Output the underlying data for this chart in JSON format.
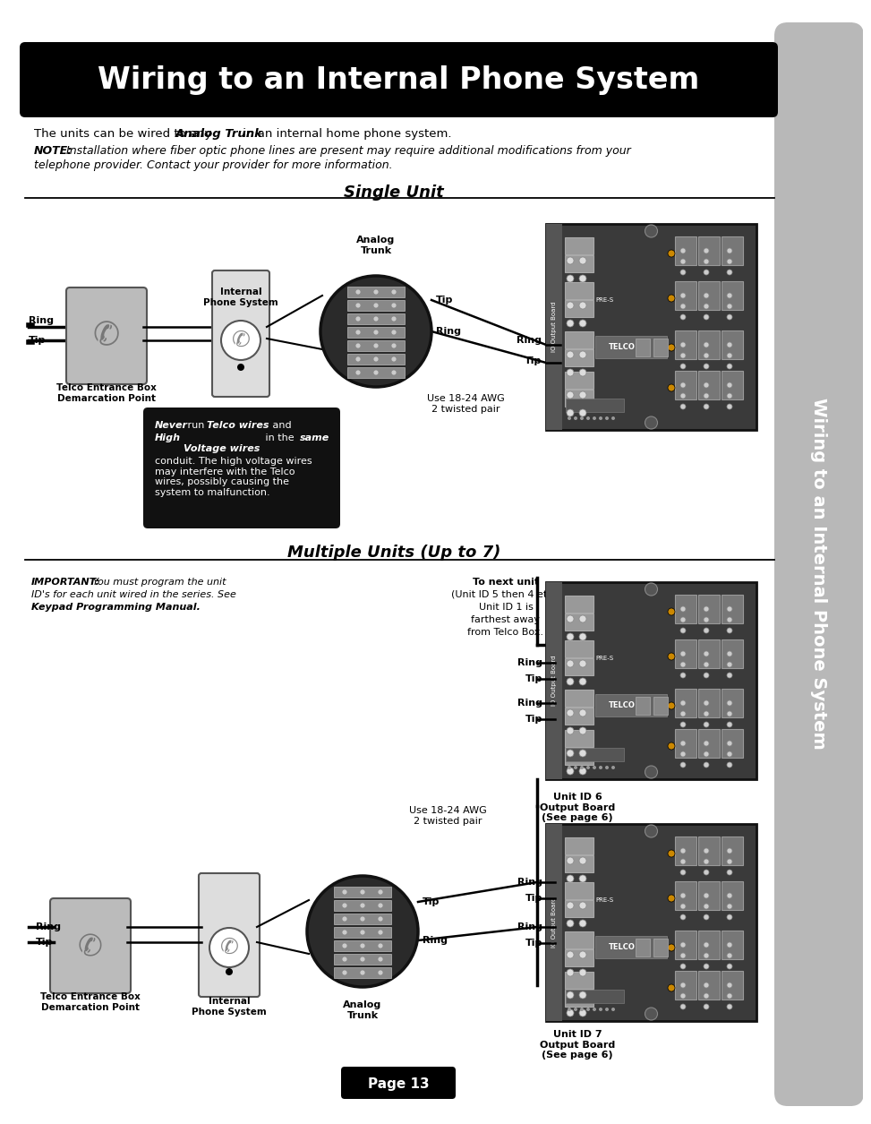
{
  "title": "Wiring to an Internal Phone System",
  "title_bg": "#000000",
  "title_fg": "#ffffff",
  "sidebar_text": "Wiring to an Internal Phone System",
  "sidebar_bg": "#b8b8b8",
  "page_bg": "#ffffff",
  "intro_text1": "The units can be wired to any ",
  "intro_bold": "Analog Trunk",
  "intro_text2": " in an internal home phone system.",
  "note_bold": "NOTE:",
  "note_italic": " Installation where fiber optic phone lines are present may require additional modifications from your",
  "note_italic2": "telephone provider. Contact your provider for more information.",
  "section1_title": "Single Unit",
  "section2_title": "Multiple Units (Up to 7)",
  "warning_never": "Never",
  "warning_telco": " run Telco wires",
  "warning_and": " and ",
  "warning_high": "High",
  "warning_voltage": "\nVoltage wires",
  "warning_same_pre": " in the ",
  "warning_same": "same",
  "warning_rest": "\nconduit. The high voltage wires\nmay interfere with the Telco\nwires, possibly causing the\nsystem to malfunction.",
  "important_bold": "IMPORTANT:",
  "important_rest": " You must program the unit\nID's for each unit wired in the series. See",
  "keypad_bold": "Keypad Programming Manual.",
  "to_next_unit": "To next unit",
  "unit_id_text": "(Unit ID 5 then 4 etc.)\nUnit ID 1 is\nfarthest away\nfrom Telco Box.",
  "use_awg": "Use 18-24 AWG\n2 twisted pair",
  "unit6_text": "Unit ID 6\nOutput Board\n(See page 6)",
  "unit7_text": "Unit ID 7\nOutput Board\n(See page 6)",
  "page_num": "Page 13",
  "telco_label1": "Telco Entrance Box",
  "telco_label2": "Demarcation Point",
  "internal_ps": "Internal\nPhone System",
  "analog_trunk": "Analog\nTrunk",
  "ring": "Ring",
  "tip": "Tip",
  "telco": "TELCO",
  "output_board_label": "IO Output Board"
}
